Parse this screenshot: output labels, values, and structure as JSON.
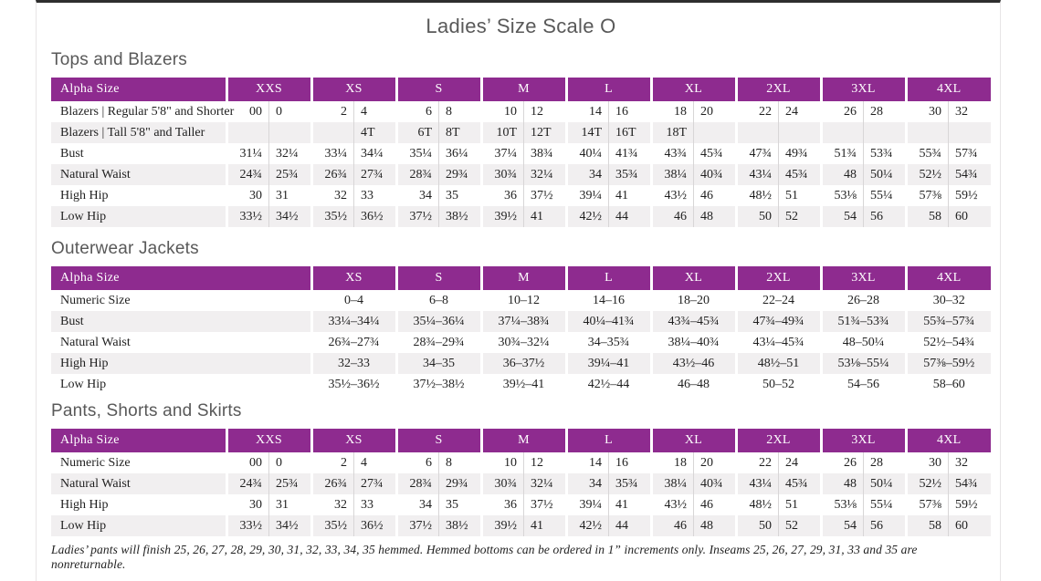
{
  "page": {
    "title": "Ladies’ Size Scale O",
    "footnote": "Ladies’ pants will finish 25, 26, 27, 28, 29, 30, 31, 32, 33, 34, 35 hemmed. Hemmed bottoms can be ordered in 1” increments only. Inseams 25, 26, 27, 29, 31, 33 and 35 are nonreturnable."
  },
  "colors": {
    "accent_purple": "#8e2b8f",
    "stripe_gray": "#f1eff0",
    "heading_gray": "#595959",
    "page_top_border": "#2e2e2e"
  },
  "tables": [
    {
      "id": "tops-and-blazers",
      "section_title": "Tops and Blazers",
      "layout": "paired",
      "header": [
        "Alpha Size",
        "XXS",
        "XS",
        "S",
        "M",
        "L",
        "XL",
        "2XL",
        "3XL",
        "4XL"
      ],
      "rows": [
        {
          "label": "Blazers  |  Regular 5'8\" and Shorter",
          "values": [
            "00",
            "0",
            "2",
            "4",
            "6",
            "8",
            "10",
            "12",
            "14",
            "16",
            "18",
            "20",
            "22",
            "24",
            "26",
            "28",
            "30",
            "32"
          ]
        },
        {
          "label": "Blazers  |  Tall 5'8\" and Taller",
          "values": [
            "",
            "",
            "",
            "4T",
            "6T",
            "8T",
            "10T",
            "12T",
            "14T",
            "16T",
            "18T",
            "",
            "",
            "",
            "",
            "",
            "",
            ""
          ]
        },
        {
          "label": "Bust",
          "values": [
            "31¼",
            "32¼",
            "33¼",
            "34¼",
            "35¼",
            "36¼",
            "37¼",
            "38¾",
            "40¼",
            "41¾",
            "43¾",
            "45¾",
            "47¾",
            "49¾",
            "51¾",
            "53¾",
            "55¾",
            "57¾"
          ]
        },
        {
          "label": "Natural Waist",
          "values": [
            "24¾",
            "25¾",
            "26¾",
            "27¾",
            "28¾",
            "29¾",
            "30¾",
            "32¼",
            "34",
            "35¾",
            "38¼",
            "40¾",
            "43¼",
            "45¾",
            "48",
            "50¼",
            "52½",
            "54¾"
          ]
        },
        {
          "label": "High Hip",
          "values": [
            "30",
            "31",
            "32",
            "33",
            "34",
            "35",
            "36",
            "37½",
            "39¼",
            "41",
            "43½",
            "46",
            "48½",
            "51",
            "53⅛",
            "55¼",
            "57⅜",
            "59½"
          ]
        },
        {
          "label": "Low Hip",
          "values": [
            "33½",
            "34½",
            "35½",
            "36½",
            "37½",
            "38½",
            "39½",
            "41",
            "42½",
            "44",
            "46",
            "48",
            "50",
            "52",
            "54",
            "56",
            "58",
            "60"
          ]
        }
      ]
    },
    {
      "id": "outerwear-jackets",
      "section_title": "Outerwear Jackets",
      "layout": "single",
      "header": [
        "Alpha Size",
        "XS",
        "S",
        "M",
        "L",
        "XL",
        "2XL",
        "3XL",
        "4XL"
      ],
      "rows": [
        {
          "label": "Numeric Size",
          "values": [
            "0–4",
            "6–8",
            "10–12",
            "14–16",
            "18–20",
            "22–24",
            "26–28",
            "30–32"
          ]
        },
        {
          "label": "Bust",
          "values": [
            "33¼–34¼",
            "35¼–36¼",
            "37¼–38¾",
            "40¼–41¾",
            "43¾–45¾",
            "47¾–49¾",
            "51¾–53¾",
            "55¾–57¾"
          ]
        },
        {
          "label": "Natural Waist",
          "values": [
            "26¾–27¾",
            "28¾–29¾",
            "30¾–32¼",
            "34–35¾",
            "38¼–40¾",
            "43¼–45¾",
            "48–50¼",
            "52½–54¾"
          ]
        },
        {
          "label": "High Hip",
          "values": [
            "32–33",
            "34–35",
            "36–37½",
            "39¼–41",
            "43½–46",
            "48½–51",
            "53⅛–55¼",
            "57⅜–59½"
          ]
        },
        {
          "label": "Low Hip",
          "values": [
            "35½–36½",
            "37½–38½",
            "39½–41",
            "42½–44",
            "46–48",
            "50–52",
            "54–56",
            "58–60"
          ]
        }
      ]
    },
    {
      "id": "pants-shorts-and-skirts",
      "section_title": "Pants, Shorts and Skirts",
      "layout": "paired",
      "header": [
        "Alpha Size",
        "XXS",
        "XS",
        "S",
        "M",
        "L",
        "XL",
        "2XL",
        "3XL",
        "4XL"
      ],
      "rows": [
        {
          "label": "Numeric Size",
          "values": [
            "00",
            "0",
            "2",
            "4",
            "6",
            "8",
            "10",
            "12",
            "14",
            "16",
            "18",
            "20",
            "22",
            "24",
            "26",
            "28",
            "30",
            "32"
          ]
        },
        {
          "label": "Natural Waist",
          "values": [
            "24¾",
            "25¾",
            "26¾",
            "27¾",
            "28¾",
            "29¾",
            "30¾",
            "32¼",
            "34",
            "35¾",
            "38¼",
            "40¾",
            "43¼",
            "45¾",
            "48",
            "50¼",
            "52½",
            "54¾"
          ]
        },
        {
          "label": "High Hip",
          "values": [
            "30",
            "31",
            "32",
            "33",
            "34",
            "35",
            "36",
            "37½",
            "39¼",
            "41",
            "43½",
            "46",
            "48½",
            "51",
            "53⅛",
            "55¼",
            "57⅜",
            "59½"
          ]
        },
        {
          "label": "Low Hip",
          "values": [
            "33½",
            "34½",
            "35½",
            "36½",
            "37½",
            "38½",
            "39½",
            "41",
            "42½",
            "44",
            "46",
            "48",
            "50",
            "52",
            "54",
            "56",
            "58",
            "60"
          ]
        }
      ]
    }
  ]
}
